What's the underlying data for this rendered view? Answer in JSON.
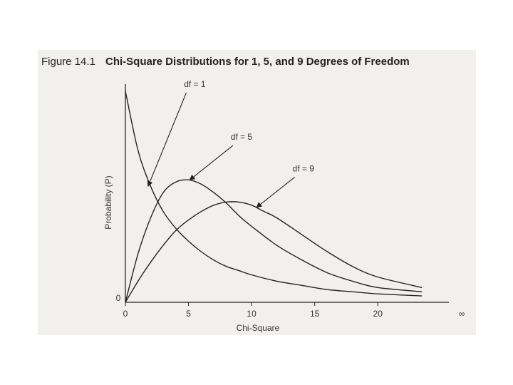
{
  "figure": {
    "number": "Figure 14.1",
    "title": "Chi-Square Distributions for 1, 5, and 9 Degrees of Freedom"
  },
  "chart_data": {
    "type": "line",
    "title": "Chi-Square Distributions for 1, 5, and 9 Degrees of Freedom",
    "xlabel": "Chi-Square",
    "ylabel": "Probability (P)",
    "xlim": [
      0,
      25
    ],
    "ylim": [
      0,
      1
    ],
    "x_ticks": [
      {
        "value": 0,
        "label": "0"
      },
      {
        "value": 5,
        "label": "5"
      },
      {
        "value": 10,
        "label": "10"
      },
      {
        "value": 15,
        "label": "15"
      },
      {
        "value": 20,
        "label": "20"
      }
    ],
    "infinity_label": "∞",
    "y_ticks": [
      {
        "value": 0,
        "label": "0"
      }
    ],
    "grid": false,
    "legend": "none",
    "series": [
      {
        "name": "df = 1",
        "x": [
          0,
          1,
          2,
          3,
          4,
          5,
          6,
          7,
          8,
          9,
          10,
          12,
          14,
          16,
          18,
          20,
          23.5
        ],
        "y": [
          1.0,
          0.72,
          0.55,
          0.43,
          0.35,
          0.29,
          0.24,
          0.2,
          0.17,
          0.15,
          0.13,
          0.1,
          0.08,
          0.06,
          0.05,
          0.04,
          0.03
        ]
      },
      {
        "name": "df = 5",
        "x": [
          0,
          1,
          2,
          3,
          4,
          5,
          6,
          7,
          8,
          9,
          10,
          12,
          14,
          16,
          18,
          20,
          23.5
        ],
        "y": [
          0,
          0.23,
          0.4,
          0.52,
          0.57,
          0.58,
          0.56,
          0.52,
          0.47,
          0.41,
          0.36,
          0.27,
          0.2,
          0.14,
          0.1,
          0.07,
          0.05
        ]
      },
      {
        "name": "df = 9",
        "x": [
          0,
          1,
          2,
          3,
          4,
          5,
          6,
          7,
          8,
          9,
          10,
          11,
          12,
          14,
          16,
          18,
          20,
          23.5
        ],
        "y": [
          0,
          0.1,
          0.19,
          0.27,
          0.34,
          0.39,
          0.43,
          0.46,
          0.475,
          0.475,
          0.46,
          0.43,
          0.4,
          0.32,
          0.24,
          0.17,
          0.12,
          0.07
        ]
      }
    ],
    "annotations": [
      {
        "text": "df = 1",
        "series": "df = 1",
        "label_x": 5.5,
        "label_y": 1.02,
        "target_x": 1.8,
        "target_y": 0.55
      },
      {
        "text": "df = 5",
        "series": "df = 5",
        "label_x": 9.2,
        "label_y": 0.77,
        "target_x": 5.1,
        "target_y": 0.58
      },
      {
        "text": "df = 9",
        "series": "df = 9",
        "label_x": 14.1,
        "label_y": 0.62,
        "target_x": 10.4,
        "target_y": 0.45
      }
    ]
  }
}
